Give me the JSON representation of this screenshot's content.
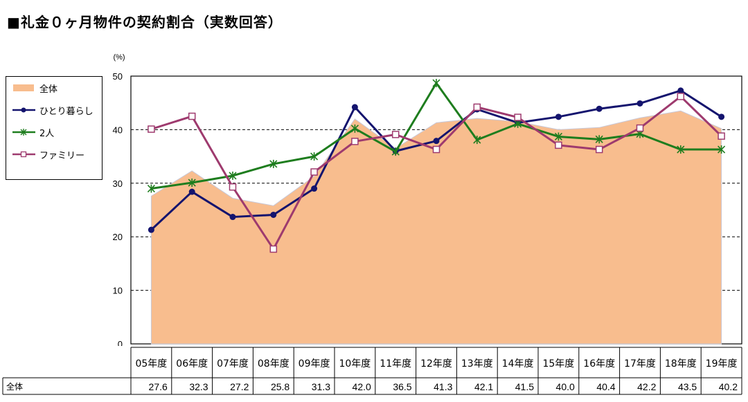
{
  "title": "■礼金０ヶ月物件の契約割合（実数回答）",
  "chart_data": {
    "type": "line",
    "unit_label": "(%)",
    "categories": [
      "05年度",
      "06年度",
      "07年度",
      "08年度",
      "09年度",
      "10年度",
      "11年度",
      "12年度",
      "13年度",
      "14年度",
      "15年度",
      "16年度",
      "17年度",
      "18年度",
      "19年度"
    ],
    "ylim": [
      0,
      50
    ],
    "yticks": [
      0,
      10,
      20,
      30,
      40,
      50
    ],
    "grid": "dashed horizontal",
    "legend_position": "left",
    "series": [
      {
        "name": "全体",
        "type": "area",
        "color": "#f8bd8e",
        "values": [
          27.6,
          32.3,
          27.2,
          25.8,
          31.3,
          42.0,
          36.5,
          41.3,
          42.1,
          41.5,
          40.0,
          40.4,
          42.2,
          43.5,
          40.2
        ]
      },
      {
        "name": "ひとり暮らし",
        "type": "line",
        "color": "#14146e",
        "marker": "circle",
        "values": [
          21.3,
          28.4,
          23.7,
          24.1,
          29.0,
          44.2,
          36.0,
          37.9,
          43.8,
          41.3,
          42.4,
          43.9,
          44.9,
          47.3,
          42.4
        ]
      },
      {
        "name": "2人",
        "type": "line",
        "color": "#1e7d1e",
        "marker": "star",
        "values": [
          29.0,
          30.1,
          31.4,
          33.6,
          35.0,
          40.2,
          35.9,
          48.7,
          38.1,
          41.1,
          38.7,
          38.2,
          39.2,
          36.3,
          36.3
        ]
      },
      {
        "name": "ファミリー",
        "type": "line",
        "color": "#9e3a6e",
        "marker": "square",
        "values": [
          40.1,
          42.5,
          29.3,
          17.7,
          32.1,
          37.8,
          39.1,
          36.3,
          44.2,
          42.3,
          37.1,
          36.3,
          40.3,
          46.2,
          38.8
        ]
      }
    ]
  },
  "table": {
    "row_label": "全体",
    "values": [
      "27.6",
      "32.3",
      "27.2",
      "25.8",
      "31.3",
      "42.0",
      "36.5",
      "41.3",
      "42.1",
      "41.5",
      "40.0",
      "40.4",
      "42.2",
      "43.5",
      "40.2"
    ]
  }
}
